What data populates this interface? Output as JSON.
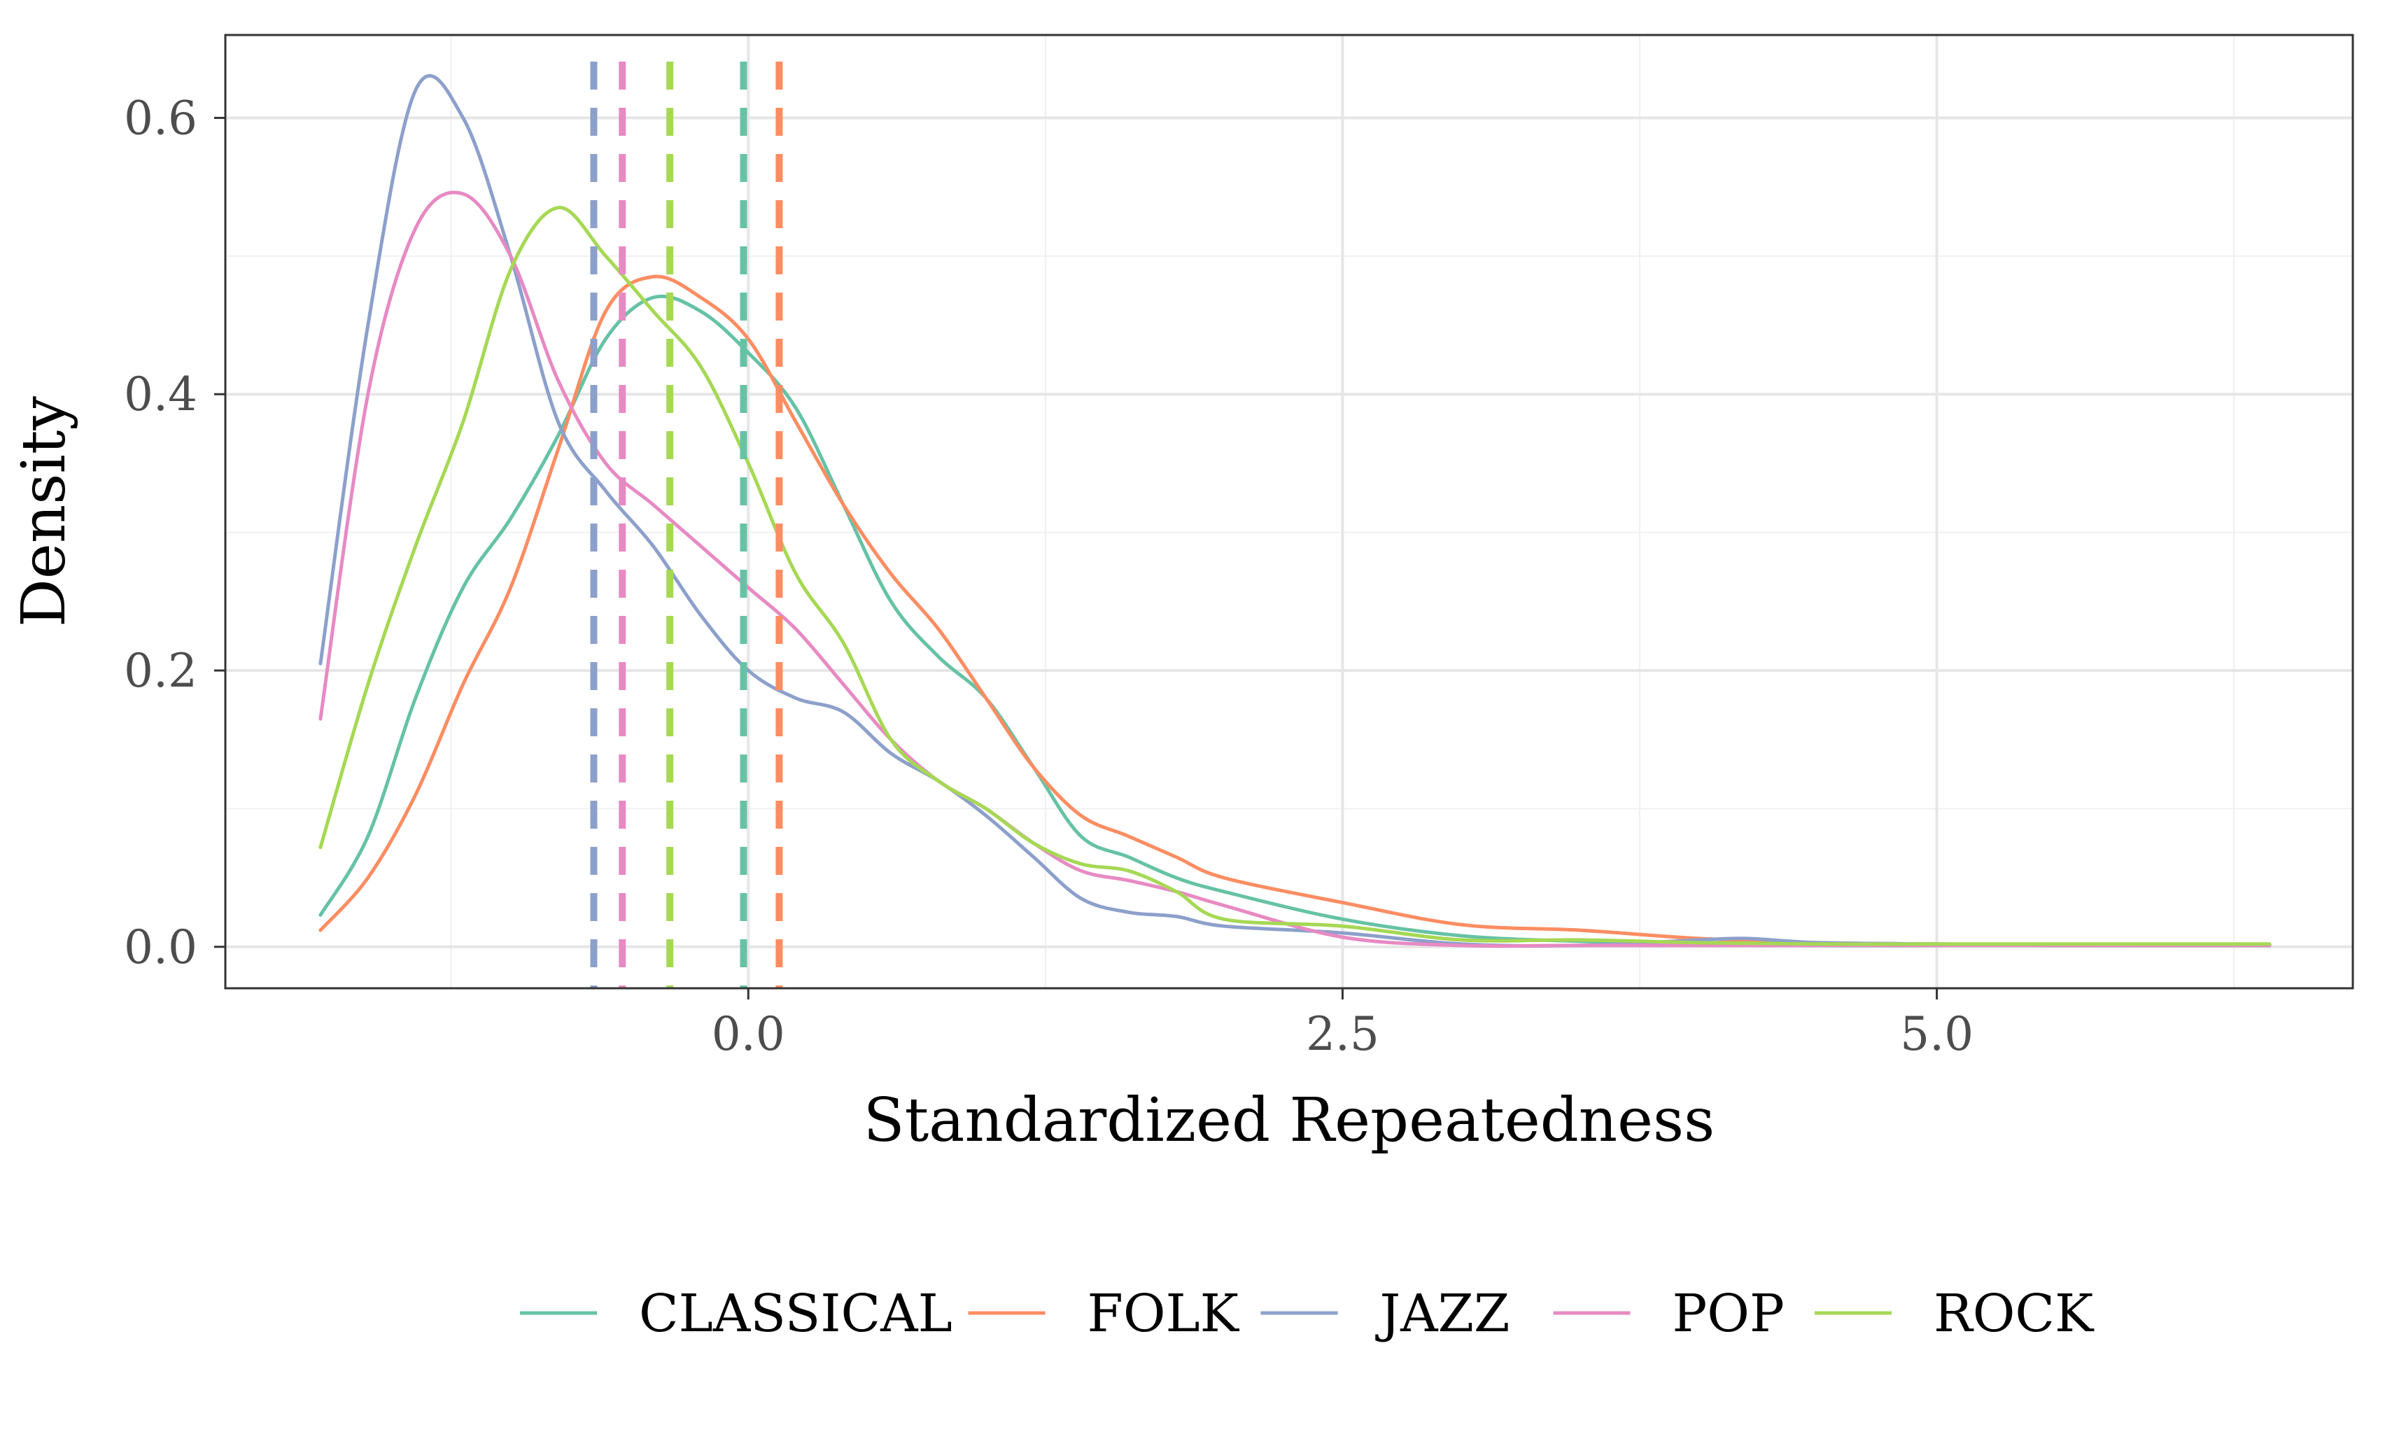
{
  "chart_data": {
    "type": "line",
    "title": "",
    "xlabel": "Standardized Repeatedness",
    "ylabel": "Density",
    "xlim": [
      -2.2,
      6.75
    ],
    "ylim": [
      -0.03,
      0.66
    ],
    "xticks": [
      0.0,
      2.5,
      5.0
    ],
    "xtick_labels": [
      "0.0",
      "2.5",
      "5.0"
    ],
    "yticks": [
      0.0,
      0.2,
      0.4,
      0.6
    ],
    "ytick_labels": [
      "0.0",
      "0.2",
      "0.4",
      "0.6"
    ],
    "grid": true,
    "legend_position": "bottom",
    "series": [
      {
        "name": "CLASSICAL",
        "color": "#66c2a5",
        "mean": -0.02,
        "x": [
          -1.8,
          -1.6,
          -1.4,
          -1.2,
          -1.0,
          -0.8,
          -0.6,
          -0.4,
          -0.2,
          0.0,
          0.2,
          0.4,
          0.6,
          0.8,
          1.0,
          1.2,
          1.4,
          1.6,
          1.8,
          2.0,
          2.5,
          3.0,
          3.5,
          4.0,
          4.5,
          5.0,
          5.5,
          6.0,
          6.4
        ],
        "y": [
          0.023,
          0.08,
          0.18,
          0.26,
          0.31,
          0.37,
          0.44,
          0.47,
          0.46,
          0.43,
          0.39,
          0.32,
          0.25,
          0.21,
          0.18,
          0.13,
          0.08,
          0.065,
          0.05,
          0.04,
          0.02,
          0.008,
          0.004,
          0.002,
          0.001,
          0.001,
          0.001,
          0.001,
          0.001
        ]
      },
      {
        "name": "FOLK",
        "color": "#fc8d62",
        "mean": 0.13,
        "x": [
          -1.8,
          -1.6,
          -1.4,
          -1.2,
          -1.0,
          -0.8,
          -0.6,
          -0.4,
          -0.2,
          0.0,
          0.2,
          0.4,
          0.6,
          0.8,
          1.0,
          1.2,
          1.4,
          1.6,
          1.8,
          2.0,
          2.5,
          3.0,
          3.5,
          4.0,
          4.5,
          5.0,
          5.5,
          6.0,
          6.4
        ],
        "y": [
          0.012,
          0.05,
          0.11,
          0.19,
          0.26,
          0.36,
          0.46,
          0.485,
          0.47,
          0.44,
          0.38,
          0.32,
          0.27,
          0.23,
          0.18,
          0.13,
          0.095,
          0.08,
          0.065,
          0.05,
          0.032,
          0.016,
          0.012,
          0.006,
          0.003,
          0.002,
          0.001,
          0.001,
          0.001
        ]
      },
      {
        "name": "JAZZ",
        "color": "#8da0cb",
        "mean": -0.65,
        "x": [
          -1.8,
          -1.6,
          -1.4,
          -1.2,
          -1.0,
          -0.8,
          -0.6,
          -0.4,
          -0.2,
          0.0,
          0.2,
          0.4,
          0.6,
          0.8,
          1.0,
          1.2,
          1.4,
          1.6,
          1.8,
          2.0,
          2.5,
          3.0,
          3.5,
          4.0,
          4.2,
          4.5,
          5.0,
          5.5,
          6.0,
          6.4
        ],
        "y": [
          0.205,
          0.45,
          0.62,
          0.6,
          0.5,
          0.38,
          0.33,
          0.29,
          0.24,
          0.2,
          0.18,
          0.17,
          0.14,
          0.12,
          0.095,
          0.065,
          0.035,
          0.025,
          0.022,
          0.015,
          0.01,
          0.002,
          0.001,
          0.005,
          0.006,
          0.003,
          0.002,
          0.001,
          0.001,
          0.001
        ]
      },
      {
        "name": "POP",
        "color": "#e78ac3",
        "mean": -0.53,
        "x": [
          -1.8,
          -1.6,
          -1.4,
          -1.2,
          -1.0,
          -0.8,
          -0.6,
          -0.4,
          -0.2,
          0.0,
          0.2,
          0.4,
          0.6,
          0.8,
          1.0,
          1.2,
          1.4,
          1.6,
          1.8,
          2.0,
          2.5,
          3.0,
          3.5,
          4.0,
          4.5,
          5.0,
          5.5,
          6.0,
          6.4
        ],
        "y": [
          0.165,
          0.4,
          0.52,
          0.545,
          0.5,
          0.41,
          0.35,
          0.32,
          0.29,
          0.26,
          0.23,
          0.19,
          0.15,
          0.12,
          0.1,
          0.075,
          0.055,
          0.048,
          0.04,
          0.03,
          0.007,
          0.001,
          0.001,
          0.001,
          0.001,
          0.001,
          0.001,
          0.001,
          0.001
        ]
      },
      {
        "name": "ROCK",
        "color": "#a6d854",
        "mean": -0.33,
        "x": [
          -1.8,
          -1.6,
          -1.4,
          -1.2,
          -1.0,
          -0.8,
          -0.6,
          -0.4,
          -0.2,
          0.0,
          0.2,
          0.4,
          0.6,
          0.8,
          1.0,
          1.2,
          1.4,
          1.6,
          1.8,
          2.0,
          2.5,
          3.0,
          3.5,
          4.0,
          4.5,
          5.0,
          5.5,
          6.0,
          6.4
        ],
        "y": [
          0.072,
          0.19,
          0.29,
          0.38,
          0.49,
          0.535,
          0.5,
          0.46,
          0.42,
          0.35,
          0.27,
          0.22,
          0.15,
          0.12,
          0.1,
          0.075,
          0.06,
          0.055,
          0.04,
          0.02,
          0.015,
          0.005,
          0.005,
          0.003,
          0.002,
          0.002,
          0.002,
          0.002,
          0.002
        ]
      }
    ]
  }
}
